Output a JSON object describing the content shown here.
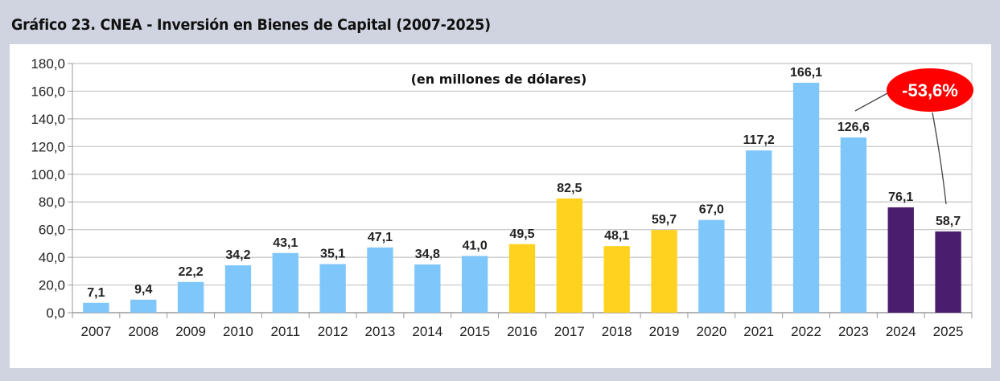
{
  "title": "Gráfico 23. CNEA - Inversión en Bienes de Capital (2007-2025)",
  "chart_data": {
    "type": "bar",
    "title": "Gráfico 23. CNEA - Inversión en Bienes de Capital (2007-2025)",
    "subtitle": "(en millones de dólares)",
    "xlabel": "",
    "ylabel": "",
    "ylim": [
      0,
      180
    ],
    "yticks": [
      0,
      20,
      40,
      60,
      80,
      100,
      120,
      140,
      160,
      180
    ],
    "ytick_labels": [
      "0,0",
      "20,0",
      "40,0",
      "60,0",
      "80,0",
      "100,0",
      "120,0",
      "140,0",
      "160,0",
      "180,0"
    ],
    "grid": true,
    "categories": [
      "2007",
      "2008",
      "2009",
      "2010",
      "2011",
      "2012",
      "2013",
      "2014",
      "2015",
      "2016",
      "2017",
      "2018",
      "2019",
      "2020",
      "2021",
      "2022",
      "2023",
      "2024",
      "2025"
    ],
    "values": [
      7.1,
      9.4,
      22.2,
      34.2,
      43.1,
      35.1,
      47.1,
      34.8,
      41.0,
      49.5,
      82.5,
      48.1,
      59.7,
      67.0,
      117.2,
      166.1,
      126.6,
      76.1,
      58.7
    ],
    "value_labels": [
      "7,1",
      "9,4",
      "22,2",
      "34,2",
      "43,1",
      "35,1",
      "47,1",
      "34,8",
      "41,0",
      "49,5",
      "82,5",
      "48,1",
      "59,7",
      "67,0",
      "117,2",
      "166,1",
      "126,6",
      "76,1",
      "58,7"
    ],
    "bar_colors": [
      "#7fc6fb",
      "#7fc6fb",
      "#7fc6fb",
      "#7fc6fb",
      "#7fc6fb",
      "#7fc6fb",
      "#7fc6fb",
      "#7fc6fb",
      "#7fc6fb",
      "#ffd21f",
      "#ffd21f",
      "#ffd21f",
      "#ffd21f",
      "#7fc6fb",
      "#7fc6fb",
      "#7fc6fb",
      "#7fc6fb",
      "#4b1d6e",
      "#4b1d6e"
    ],
    "annotation": {
      "text": "-53,6%",
      "from_category": "2023",
      "to_category": "2025",
      "color": "#ff0000"
    }
  }
}
